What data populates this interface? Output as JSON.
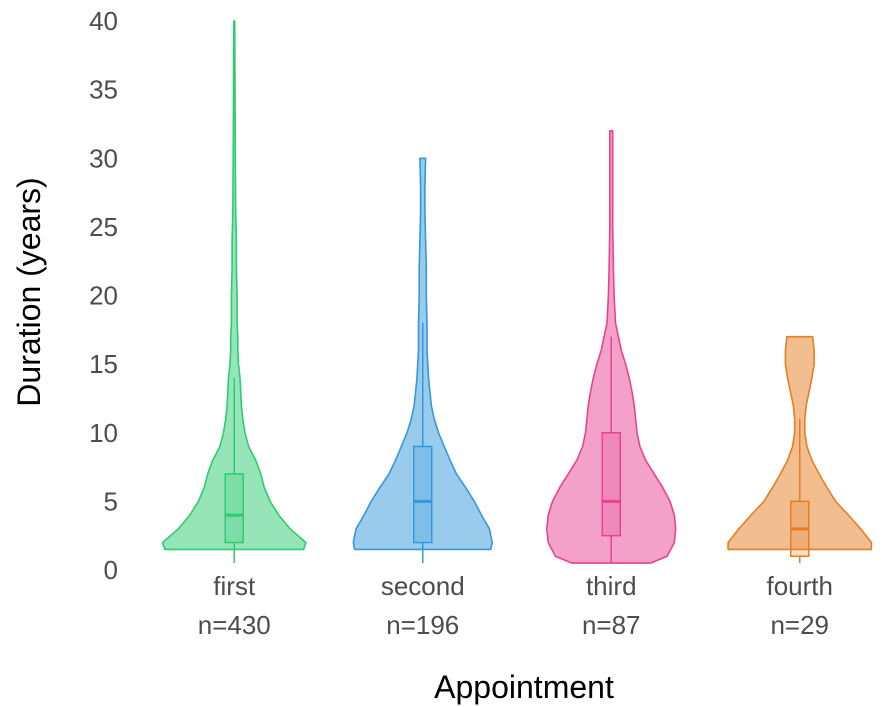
{
  "chart_data": {
    "type": "violin",
    "xlabel": "Appointment",
    "ylabel": "Duration (years)",
    "ylim": [
      0,
      40
    ],
    "y_ticks": [
      "0",
      "5",
      "10",
      "15",
      "20",
      "25",
      "30",
      "35",
      "40"
    ],
    "grid": false,
    "legend": "none",
    "categories": [
      "first",
      "second",
      "third",
      "fourth"
    ],
    "counts": [
      "n=430",
      "n=196",
      "n=87",
      "n=29"
    ],
    "series": [
      {
        "category": "first",
        "color": "#2ecc71",
        "box": {
          "min": 0.5,
          "q1": 2,
          "median": 4,
          "q3": 7,
          "max": 14
        },
        "violin": [
          [
            1.5,
            0.97
          ],
          [
            2,
            1.0
          ],
          [
            3,
            0.78
          ],
          [
            4,
            0.62
          ],
          [
            5,
            0.5
          ],
          [
            6,
            0.42
          ],
          [
            7,
            0.37
          ],
          [
            8,
            0.3
          ],
          [
            9,
            0.2
          ],
          [
            10,
            0.15
          ],
          [
            11,
            0.12
          ],
          [
            12,
            0.1
          ],
          [
            13,
            0.09
          ],
          [
            14,
            0.08
          ],
          [
            15,
            0.06
          ],
          [
            16,
            0.05
          ],
          [
            17,
            0.05
          ],
          [
            18,
            0.04
          ],
          [
            19,
            0.04
          ],
          [
            20,
            0.04
          ],
          [
            22,
            0.03
          ],
          [
            24,
            0.03
          ],
          [
            26,
            0.02
          ],
          [
            30,
            0.015
          ],
          [
            35,
            0.01
          ],
          [
            40,
            0.006
          ]
        ]
      },
      {
        "category": "second",
        "color": "#3498db",
        "box": {
          "min": 0.5,
          "q1": 2,
          "median": 5,
          "q3": 9,
          "max": 18
        },
        "violin": [
          [
            1.5,
            0.95
          ],
          [
            2,
            0.97
          ],
          [
            3,
            0.93
          ],
          [
            4,
            0.82
          ],
          [
            5,
            0.72
          ],
          [
            6,
            0.6
          ],
          [
            7,
            0.47
          ],
          [
            8,
            0.38
          ],
          [
            9,
            0.3
          ],
          [
            10,
            0.22
          ],
          [
            11,
            0.16
          ],
          [
            12,
            0.12
          ],
          [
            13,
            0.1
          ],
          [
            14,
            0.08
          ],
          [
            15,
            0.07
          ],
          [
            16,
            0.06
          ],
          [
            17,
            0.06
          ],
          [
            18,
            0.06
          ],
          [
            20,
            0.05
          ],
          [
            22,
            0.05
          ],
          [
            24,
            0.04
          ],
          [
            26,
            0.03
          ],
          [
            28,
            0.03
          ],
          [
            30,
            0.04
          ]
        ]
      },
      {
        "category": "third",
        "color": "#e84393",
        "box": {
          "min": 0.5,
          "q1": 2.5,
          "median": 5,
          "q3": 10,
          "max": 17
        },
        "violin": [
          [
            0.5,
            0.55
          ],
          [
            1,
            0.78
          ],
          [
            2,
            0.88
          ],
          [
            3,
            0.9
          ],
          [
            4,
            0.88
          ],
          [
            5,
            0.82
          ],
          [
            6,
            0.72
          ],
          [
            7,
            0.6
          ],
          [
            8,
            0.48
          ],
          [
            9,
            0.4
          ],
          [
            10,
            0.36
          ],
          [
            11,
            0.34
          ],
          [
            12,
            0.32
          ],
          [
            13,
            0.29
          ],
          [
            14,
            0.25
          ],
          [
            15,
            0.2
          ],
          [
            16,
            0.14
          ],
          [
            17,
            0.1
          ],
          [
            18,
            0.06
          ],
          [
            20,
            0.04
          ],
          [
            22,
            0.03
          ],
          [
            25,
            0.02
          ],
          [
            28,
            0.02
          ],
          [
            30,
            0.02
          ],
          [
            32,
            0.02
          ]
        ]
      },
      {
        "category": "fourth",
        "color": "#e67e22",
        "box": {
          "min": 0.5,
          "q1": 1,
          "median": 3,
          "q3": 5,
          "max": 11
        },
        "violin": [
          [
            1.5,
            1.0
          ],
          [
            2,
            1.0
          ],
          [
            3,
            0.85
          ],
          [
            4,
            0.68
          ],
          [
            5,
            0.5
          ],
          [
            6,
            0.38
          ],
          [
            7,
            0.27
          ],
          [
            8,
            0.17
          ],
          [
            9,
            0.1
          ],
          [
            10,
            0.07
          ],
          [
            11,
            0.07
          ],
          [
            12,
            0.09
          ],
          [
            13,
            0.13
          ],
          [
            14,
            0.17
          ],
          [
            15,
            0.2
          ],
          [
            16,
            0.2
          ],
          [
            17,
            0.18
          ]
        ]
      }
    ]
  }
}
